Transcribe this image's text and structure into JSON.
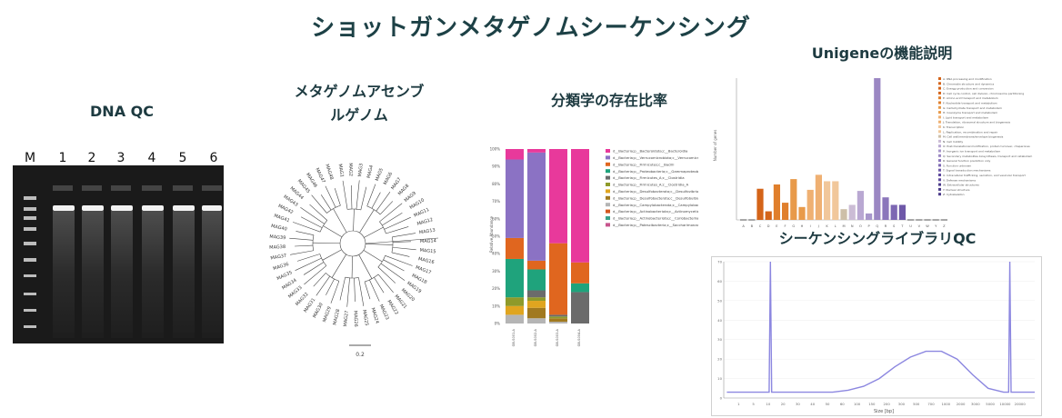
{
  "title": "ショットガンメタゲノムシーケンシング",
  "panels": {
    "dna_qc": {
      "title": "DNA QC",
      "lanes": [
        "M",
        "1",
        "2",
        "3",
        "4",
        "5",
        "6"
      ]
    },
    "assembly": {
      "title_line1": "メタゲノムアセンブ",
      "title_line2": "ルゲノム",
      "scale_label": "0.2",
      "leaves": [
        "MAG1",
        "MAG2",
        "MAG3",
        "MAG4",
        "MAG5",
        "MAG6",
        "MAG7",
        "MAG8",
        "MAG9",
        "MAG10",
        "MAG11",
        "MAG12",
        "MAG13",
        "MAG14",
        "MAG15",
        "MAG16",
        "MAG17",
        "MAG18",
        "MAG19",
        "MAG20",
        "MAG21",
        "MAG22",
        "MAG23",
        "MAG24",
        "MAG25",
        "MAG26",
        "MAG27",
        "MAG28",
        "MAG29",
        "MAG30",
        "MAG31",
        "MAG32",
        "MAG33",
        "MAG34",
        "MAG35",
        "MAG36",
        "MAG37",
        "MAG38",
        "MAG39",
        "MAG40",
        "MAG41",
        "MAG42",
        "MAG43",
        "MAG44",
        "MAG45",
        "MAG46",
        "MAG47",
        "MAG48"
      ]
    },
    "taxonomy": {
      "title": "分類学の存在比率",
      "ylabel": "Relative Abundance",
      "yticks": [
        "0%",
        "10%",
        "20%",
        "30%",
        "40%",
        "50%",
        "60%",
        "70%",
        "80%",
        "90%",
        "100%"
      ],
      "samples": [
        "GB-S001-A",
        "GB-S002-A",
        "GB-S003-A",
        "GB-S004-A"
      ],
      "legend": [
        {
          "name": "d__Bacteria;p__Bacteroidota;c__Bacteroidia",
          "color": "#e8399b"
        },
        {
          "name": "d__Bacteria;p__Verrucomicrobiota;c__Verrucomicrobiae",
          "color": "#8b72c4"
        },
        {
          "name": "d__Bacteria;p__Firmicutes;c__Bacilli",
          "color": "#e0661f"
        },
        {
          "name": "d__Bacteria;p__Proteobacteria;c__Gammaproteobacteria",
          "color": "#1fa37c"
        },
        {
          "name": "d__Bacteria;p__Firmicutes_A;c__Clostridia",
          "color": "#6b6b6b"
        },
        {
          "name": "d__Bacteria;p__Firmicutes_A;c__Clostridia_A",
          "color": "#8e9a2a"
        },
        {
          "name": "d__Bacteria;p__Desulfobacterota;c__Desulfovibrionia",
          "color": "#e0a51f"
        },
        {
          "name": "d__Bacteria;p__Desulfobacterota;c__Desulfobulbia",
          "color": "#a1791f"
        },
        {
          "name": "d__Bacteria;p__Campylobacterota;c__Campylobacteria",
          "color": "#b5b5b5"
        },
        {
          "name": "d__Bacteria;p__Actinobacteriota;c__Actinomycetia",
          "color": "#d4571f"
        },
        {
          "name": "d__Bacteria;p__Actinobacteriota;c__Coriobacteriia",
          "color": "#38a18a"
        },
        {
          "name": "d__Bacteria;p__Patescibacteria;c__Saccharimonadia",
          "color": "#c7548d"
        }
      ]
    },
    "unigene": {
      "title": "Unigeneの機能説明",
      "ylabel": "Number of genes",
      "categories": [
        "A",
        "B",
        "C",
        "D",
        "E",
        "F",
        "G",
        "H",
        "I",
        "J",
        "K",
        "L",
        "M",
        "N",
        "O",
        "P",
        "Q",
        "R",
        "S",
        "T",
        "U",
        "V",
        "W",
        "Y",
        "Z"
      ],
      "legend": [
        "A: RNA processing and modification",
        "B: Chromatin structure and dynamics",
        "C: Energy production and conversion",
        "D: Cell cycle control, cell division, chromosome partitioning",
        "E: Amino acid transport and metabolism",
        "F: Nucleotide transport and metabolism",
        "G: Carbohydrate transport and metabolism",
        "H: Coenzyme transport and metabolism",
        "I: Lipid transport and metabolism",
        "J: Translation, ribosomal structure and biogenesis",
        "K: Transcription",
        "L: Replication, recombination and repair",
        "M: Cell wall/membrane/envelope biogenesis",
        "N: Cell motility",
        "O: Post-translational modification, protein turnover, chaperones",
        "P: Inorganic ion transport and metabolism",
        "Q: Secondary metabolites biosynthesis, transport and catabolism",
        "R: General function prediction only",
        "S: Function unknown",
        "T: Signal transduction mechanisms",
        "U: Intracellular trafficking, secretion, and vesicular transport",
        "V: Defense mechanisms",
        "W: Extracellular structures",
        "Y: Nuclear structure",
        "Z: Cytoskeleton"
      ]
    },
    "library_qc": {
      "title": "シーケンシングライブラリQC",
      "xlabel": "Size [bp]",
      "xticks": [
        "1",
        "5",
        "10",
        "20",
        "30",
        "40",
        "50",
        "60",
        "100",
        "150",
        "200",
        "300",
        "500",
        "700",
        "1000",
        "2000",
        "3000",
        "5000",
        "10000",
        "20000"
      ],
      "yticks": [
        "0",
        "10",
        "20",
        "30",
        "40",
        "50",
        "60",
        "70"
      ]
    }
  },
  "chart_data": [
    {
      "type": "bar",
      "title": "分類学の存在比率",
      "ylabel": "Relative Abundance",
      "ylim": [
        0,
        100
      ],
      "categories": [
        "GB-S001-A",
        "GB-S002-A",
        "GB-S003-A",
        "GB-S004-A"
      ],
      "series": [
        {
          "name": "d__Bacteria;p__Bacteroidota;c__Bacteroidia",
          "values": [
            6,
            2,
            54,
            65
          ]
        },
        {
          "name": "d__Bacteria;p__Verrucomicrobiota;c__Verrucomicrobiae",
          "values": [
            45,
            62,
            0,
            0
          ]
        },
        {
          "name": "d__Bacteria;p__Firmicutes;c__Bacilli",
          "values": [
            12,
            5,
            41,
            12
          ]
        },
        {
          "name": "d__Bacteria;p__Proteobacteria;c__Gammaproteobacteria",
          "values": [
            22,
            12,
            0,
            5
          ]
        },
        {
          "name": "d__Bacteria;p__Firmicutes_A;c__Clostridia",
          "values": [
            0,
            4,
            1,
            18
          ]
        },
        {
          "name": "d__Bacteria;p__Firmicutes_A;c__Clostridia_A",
          "values": [
            5,
            2,
            1,
            0
          ]
        },
        {
          "name": "d__Bacteria;p__Desulfobacterota;c__Desulfovibrionia",
          "values": [
            5,
            4,
            0,
            0
          ]
        },
        {
          "name": "d__Bacteria;p__Desulfobacterota;c__Desulfobulbia",
          "values": [
            0,
            6,
            2,
            0
          ]
        },
        {
          "name": "d__Bacteria;p__Campylobacterota;c__Campylobacteria",
          "values": [
            5,
            3,
            1,
            0
          ]
        }
      ]
    },
    {
      "type": "bar",
      "title": "Unigeneの機能説明",
      "ylabel": "Number of genes",
      "categories": [
        "A",
        "B",
        "C",
        "D",
        "E",
        "F",
        "G",
        "H",
        "I",
        "J",
        "K",
        "L",
        "M",
        "N",
        "O",
        "P",
        "Q",
        "R",
        "S",
        "T",
        "U",
        "V",
        "W",
        "Y",
        "Z"
      ],
      "values": [
        0,
        0,
        290,
        80,
        330,
        160,
        380,
        120,
        280,
        420,
        360,
        360,
        100,
        140,
        270,
        60,
        1320,
        210,
        140,
        140,
        0,
        0,
        0,
        0,
        0
      ],
      "colors": [
        "#d46419",
        "#d46419",
        "#d46419",
        "#d46419",
        "#e07f2c",
        "#e07f2c",
        "#e89a4a",
        "#e89a4a",
        "#efb072",
        "#efb072",
        "#f1c79b",
        "#f1c79b",
        "#cdbfa8",
        "#cbbcd5",
        "#b9a8d2",
        "#a897cb",
        "#9b87c3",
        "#8b76bb",
        "#7d67b3",
        "#6e58a8",
        "#5e489d",
        "#5e489d",
        "#4b3b8a",
        "#4b3b8a",
        "#4b3b8a"
      ]
    },
    {
      "type": "line",
      "title": "シーケンシングライブラリQC",
      "xlabel": "Size [bp]",
      "series": [
        {
          "x": [
            1,
            15,
            30,
            35,
            40,
            45,
            50,
            55,
            60,
            65,
            70,
            75,
            80,
            85,
            90,
            92,
            100
          ],
          "y": [
            3,
            70,
            3,
            3,
            4,
            6,
            10,
            16,
            21,
            24,
            24,
            20,
            12,
            5,
            3,
            70,
            3
          ]
        }
      ]
    }
  ]
}
